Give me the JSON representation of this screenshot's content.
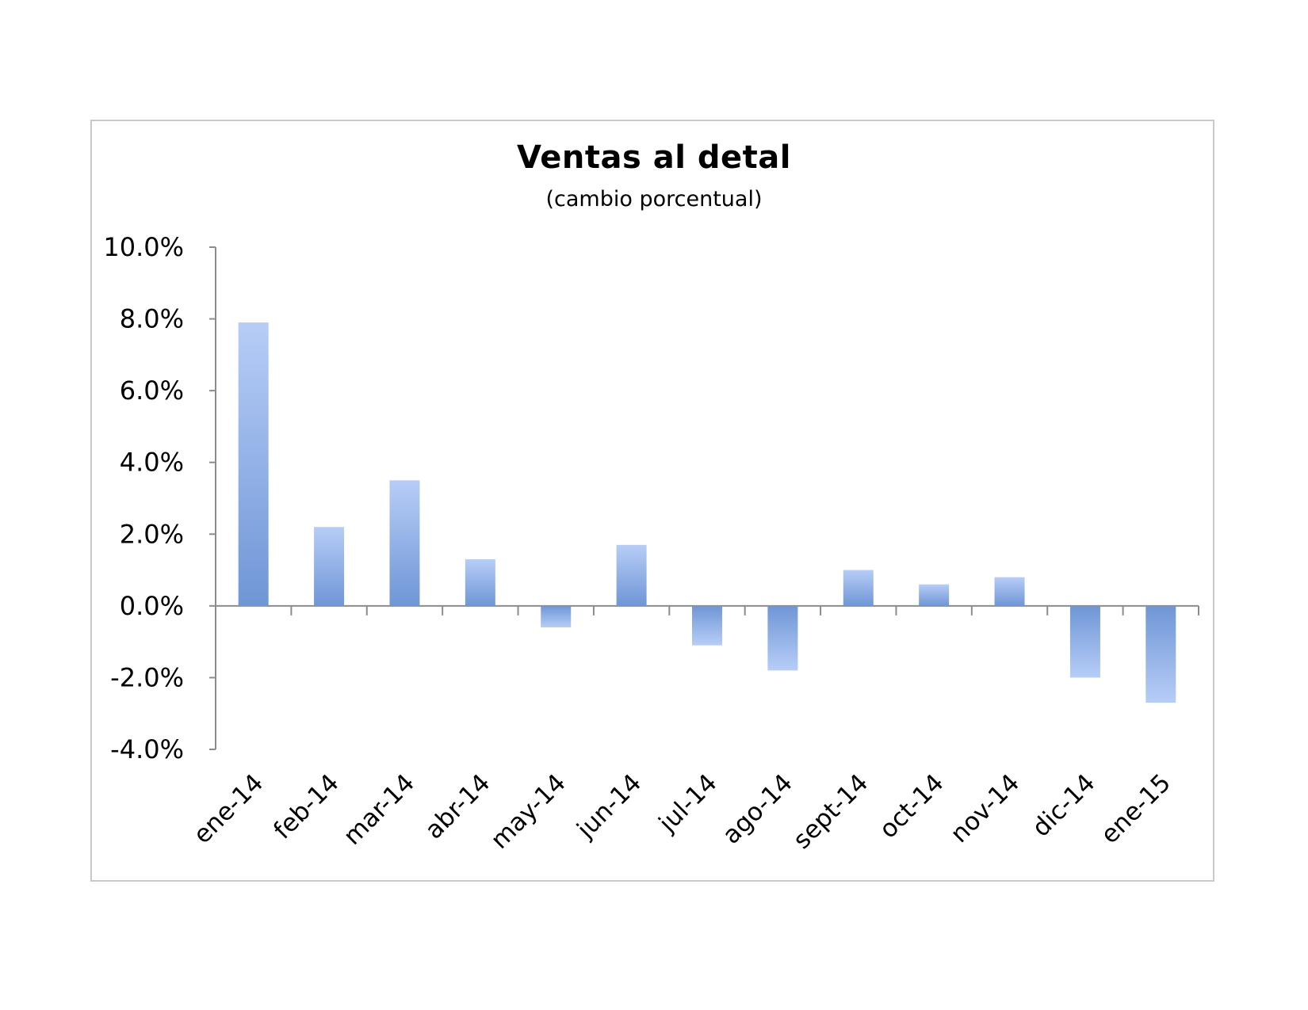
{
  "chart_data": {
    "type": "bar",
    "title": "Ventas al detal",
    "subtitle": "(cambio porcentual)",
    "xlabel": "",
    "ylabel": "",
    "categories": [
      "ene-14",
      "feb-14",
      "mar-14",
      "abr-14",
      "may-14",
      "jun-14",
      "jul-14",
      "ago-14",
      "sept-14",
      "oct-14",
      "nov-14",
      "dic-14",
      "ene-15"
    ],
    "values": [
      7.9,
      2.2,
      3.5,
      1.3,
      -0.6,
      1.7,
      -1.1,
      -1.8,
      1.0,
      0.6,
      0.8,
      -2.0,
      -2.7
    ],
    "ylim": [
      -4.0,
      10.0
    ],
    "yticks": [
      10.0,
      8.0,
      6.0,
      4.0,
      2.0,
      0.0,
      -2.0,
      -4.0
    ],
    "ytick_labels": [
      "10.0%",
      "8.0%",
      "6.0%",
      "4.0%",
      "2.0%",
      "0.0%",
      "-2.0%",
      "-4.0%"
    ],
    "grid": false,
    "legend": "none",
    "colors": {
      "bar_top": "#b7cdf7",
      "bar_bottom": "#6f96d6",
      "axis": "#8c8c8c",
      "frame": "#c9c9c9"
    }
  }
}
